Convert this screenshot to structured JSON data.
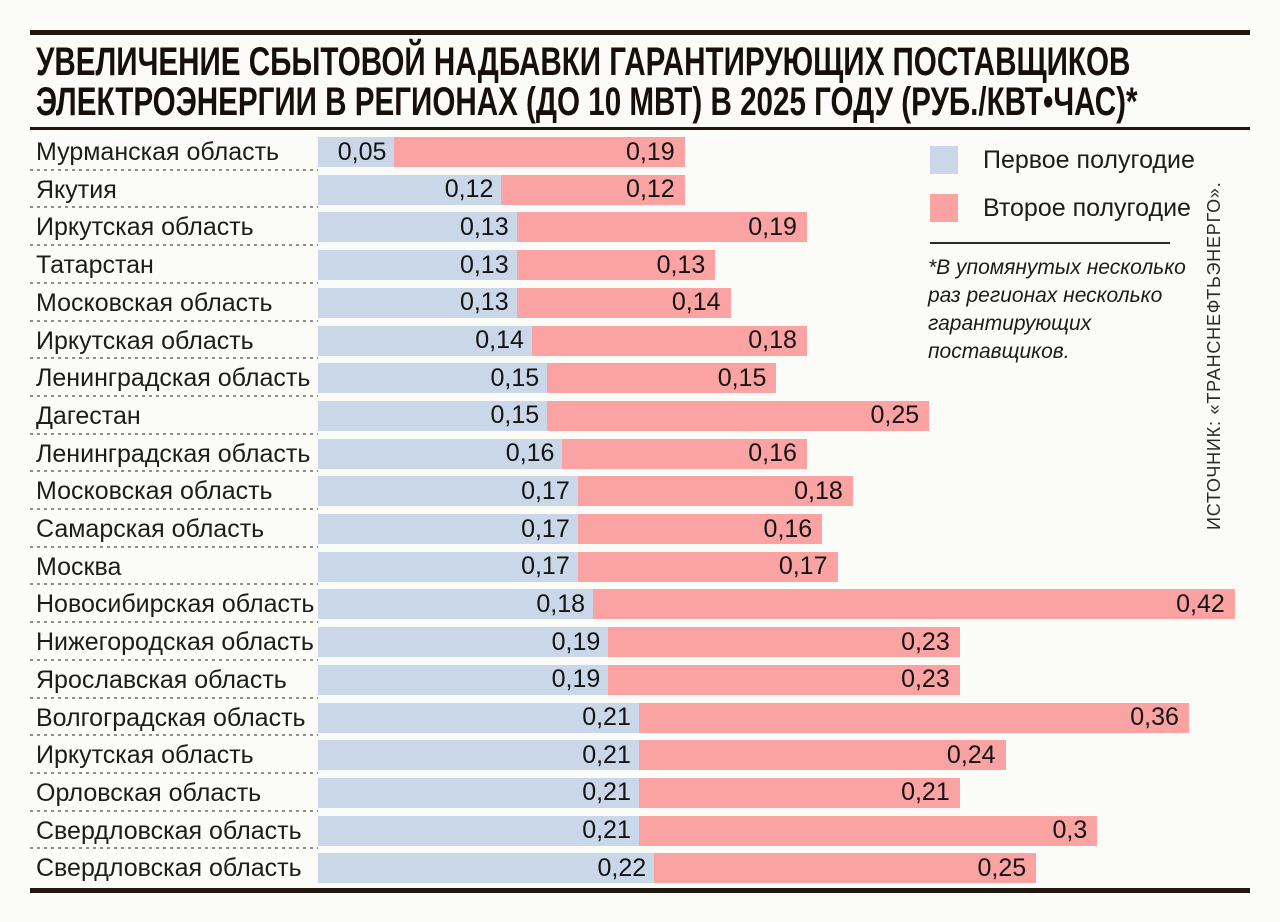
{
  "chart_data": {
    "type": "bar",
    "orientation": "horizontal",
    "stacked": true,
    "grid": false,
    "legend_position": "top-right",
    "title": "УВЕЛИЧЕНИЕ СБЫТОВОЙ НАДБАВКИ ГАРАНТИРУЮЩИХ ПОСТАВЩИКОВ ЭЛЕКТРОЭНЕРГИИ В РЕГИОНАХ (ДО 10 МВТ) В 2025 ГОДУ (РУБ./КВТ•ЧАС)*",
    "title_lines": [
      "УВЕЛИЧЕНИЕ СБЫТОВОЙ НАДБАВКИ ГАРАНТИРУЮЩИХ ПОСТАВЩИКОВ",
      "ЭЛЕКТРОЭНЕРГИИ В РЕГИОНАХ (ДО 10 МВТ) В 2025 ГОДУ (РУБ./КВТ•ЧАС)*"
    ],
    "unit": "руб./кВт•час",
    "xlim": [
      0,
      0.65
    ],
    "categories": [
      "Мурманская область",
      "Якутия",
      "Иркутская область",
      "Татарстан",
      "Московская область",
      "Иркутская область",
      "Ленинградская область",
      "Дагестан",
      "Ленинградская область",
      "Московская область",
      "Самарская область",
      "Москва",
      "Новосибирская область",
      "Нижегородская область",
      "Ярославская область",
      "Волгоградская область",
      "Иркутская область",
      "Орловская область",
      "Свердловская область",
      "Свердловская область"
    ],
    "series": [
      {
        "name": "Первое полугодие",
        "color": "#c9d7e8",
        "values": [
          0.05,
          0.12,
          0.13,
          0.13,
          0.13,
          0.14,
          0.15,
          0.15,
          0.16,
          0.17,
          0.17,
          0.17,
          0.18,
          0.19,
          0.19,
          0.21,
          0.21,
          0.21,
          0.21,
          0.22
        ]
      },
      {
        "name": "Второе полугодие",
        "color": "#fba3a3",
        "values": [
          0.19,
          0.12,
          0.19,
          0.13,
          0.14,
          0.18,
          0.15,
          0.25,
          0.16,
          0.18,
          0.16,
          0.17,
          0.42,
          0.23,
          0.23,
          0.36,
          0.24,
          0.21,
          0.3,
          0.25
        ]
      }
    ],
    "decimal_separator": ","
  },
  "footnote": {
    "lines": [
      "*В упомянутых несколько",
      "раз регионах несколько",
      "гарантирующих",
      "поставщиков."
    ]
  },
  "source": {
    "text": "ИСТОЧНИК: «ТРАНСНЕФТЬЭНЕРГО»."
  }
}
